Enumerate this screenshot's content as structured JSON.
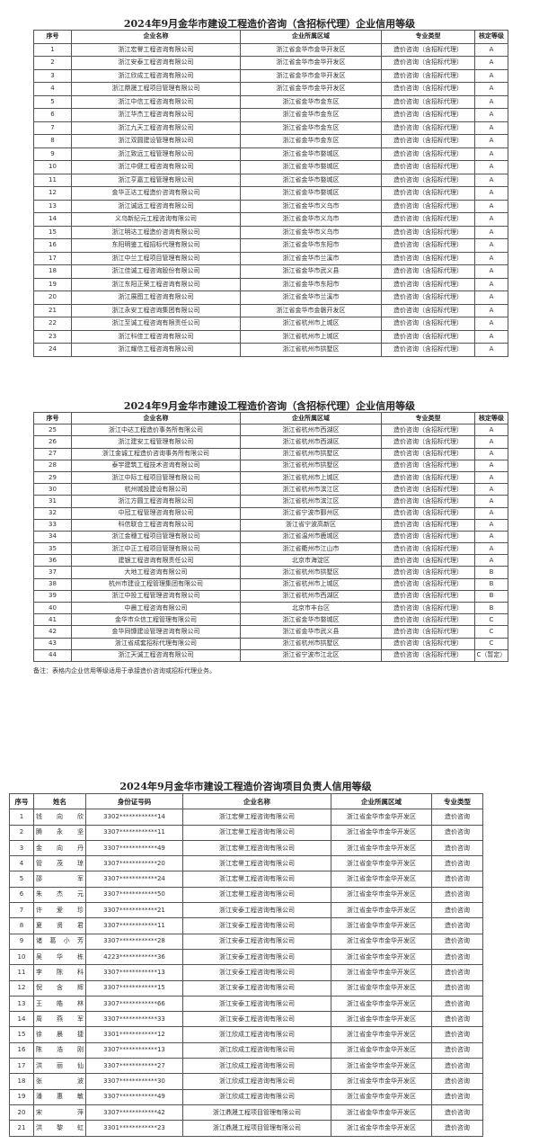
{
  "table1": {
    "title": "2024年9月金华市建设工程造价咨询（含招标代理）企业信用等级",
    "headers": [
      "序号",
      "企业名称",
      "企业所属区域",
      "专业类型",
      "核定等级"
    ],
    "rows": [
      [
        "1",
        "浙江宏譽工程咨询有限公司",
        "浙江省金华市金华开发区",
        "造价咨询（含招标代理）",
        "A"
      ],
      [
        "2",
        "浙江安泰工程咨询有限公司",
        "浙江省金华市金华开发区",
        "造价咨询（含招标代理）",
        "A"
      ],
      [
        "3",
        "浙江欣成工程咨询有限公司",
        "浙江省金华市金华开发区",
        "造价咨询（含招标代理）",
        "A"
      ],
      [
        "4",
        "浙江鼎晟工程项目管理有限公司",
        "浙江省金华市金华开发区",
        "造价咨询（含招标代理）",
        "A"
      ],
      [
        "5",
        "浙江中信工程咨询有限公司",
        "浙江省金华市金东区",
        "造价咨询（含招标代理）",
        "A"
      ],
      [
        "6",
        "浙江华杰工程咨询有限公司",
        "浙江省金华市金东区",
        "造价咨询（含招标代理）",
        "A"
      ],
      [
        "7",
        "浙江九天工程咨询有限公司",
        "浙江省金华市金东区",
        "造价咨询（含招标代理）",
        "A"
      ],
      [
        "8",
        "浙江双圆建设管理有限公司",
        "浙江省金华市金东区",
        "造价咨询（含招标代理）",
        "A"
      ],
      [
        "9",
        "浙江致远工程管理有限公司",
        "浙江省金华市婺城区",
        "造价咨询（含招标代理）",
        "A"
      ],
      [
        "10",
        "浙江中健工程咨询有限公司",
        "浙江省金华市婺城区",
        "造价咨询（含招标代理）",
        "A"
      ],
      [
        "11",
        "浙江亨嘉工程管理有限公司",
        "浙江省金华市婺城区",
        "造价咨询（含招标代理）",
        "A"
      ],
      [
        "12",
        "金华正达工程造价咨询有限公司",
        "浙江省金华市婺城区",
        "造价咨询（含招标代理）",
        "A"
      ],
      [
        "13",
        "浙江诚远工程咨询有限公司",
        "浙江省金华市义乌市",
        "造价咨询（含招标代理）",
        "A"
      ],
      [
        "14",
        "义乌新纪元工程咨询有限公司",
        "浙江省金华市义乌市",
        "造价咨询（含招标代理）",
        "A"
      ],
      [
        "15",
        "浙江明达工程造价咨询有限公司",
        "浙江省金华市义乌市",
        "造价咨询（含招标代理）",
        "A"
      ],
      [
        "16",
        "东阳明鉴工程招标代理有限公司",
        "浙江省金华市东阳市",
        "造价咨询（含招标代理）",
        "A"
      ],
      [
        "17",
        "浙江中兰工程项目管理有限公司",
        "浙江省金华市兰溪市",
        "造价咨询（含招标代理）",
        "A"
      ],
      [
        "18",
        "浙江佳诚工程咨询股份有限公司",
        "浙江省金华市武义县",
        "造价咨询（含招标代理）",
        "A"
      ],
      [
        "19",
        "浙江东阳正荣工程咨询有限公司",
        "浙江省金华市东阳市",
        "造价咨询（含招标代理）",
        "A"
      ],
      [
        "20",
        "浙江展图工程咨询有限公司",
        "浙江省金华市兰溪市",
        "造价咨询（含招标代理）",
        "A"
      ],
      [
        "21",
        "浙江永安工程咨询集团有限公司",
        "浙江省金华市金磐开发区",
        "造价咨询（含招标代理）",
        "A"
      ],
      [
        "22",
        "浙江至诚工程咨询有限责任公司",
        "浙江省杭州市上城区",
        "造价咨询（含招标代理）",
        "A"
      ],
      [
        "23",
        "浙江科佳工程咨询有限公司",
        "浙江省杭州市上城区",
        "造价咨询（含招标代理）",
        "A"
      ],
      [
        "24",
        "浙江耀信工程咨询有限公司",
        "浙江省杭州市拱墅区",
        "造价咨询（含招标代理）",
        "A"
      ]
    ]
  },
  "table2": {
    "title": "2024年9月金华市建设工程造价咨询（含招标代理）企业信用等级",
    "headers": [
      "序号",
      "企业名称",
      "企业所属区域",
      "专业类型",
      "核定等级"
    ],
    "rows": [
      [
        "25",
        "浙江中达工程造价事务所有限公司",
        "浙江省杭州市西湖区",
        "造价咨询（含招标代理）",
        "A"
      ],
      [
        "26",
        "浙江建安工程管理有限公司",
        "浙江省杭州市西湖区",
        "造价咨询（含招标代理）",
        "A"
      ],
      [
        "27",
        "浙江金诚工程造价咨询事务所有限公司",
        "浙江省杭州市拱墅区",
        "造价咨询（含招标代理）",
        "A"
      ],
      [
        "28",
        "泰宇建筑工程技术咨询有限公司",
        "浙江省杭州市拱墅区",
        "造价咨询（含招标代理）",
        "A"
      ],
      [
        "29",
        "浙江中际工程项目管理有限公司",
        "浙江省杭州市上城区",
        "造价咨询（含招标代理）",
        "A"
      ],
      [
        "30",
        "杭州城投建设有限公司",
        "浙江省杭州市滨江区",
        "造价咨询（含招标代理）",
        "A"
      ],
      [
        "31",
        "浙江方圆工程咨询有限公司",
        "浙江省杭州市滨江区",
        "造价咨询（含招标代理）",
        "A"
      ],
      [
        "32",
        "中冠工程管理咨询有限公司",
        "浙江省宁波市鄞州区",
        "造价咨询（含招标代理）",
        "A"
      ],
      [
        "33",
        "科信联合工程咨询有限公司",
        "浙江省宁波高新区",
        "造价咨询（含招标代理）",
        "A"
      ],
      [
        "34",
        "浙江金穗工程项目管理有限公司",
        "浙江省温州市鹿城区",
        "造价咨询（含招标代理）",
        "A"
      ],
      [
        "35",
        "浙江中正工程项目管理有限公司",
        "浙江省衢州市江山市",
        "造价咨询（含招标代理）",
        "A"
      ],
      [
        "36",
        "建银工程咨询有限责任公司",
        "北京市海淀区",
        "造价咨询（含招标代理）",
        "A"
      ],
      [
        "37",
        "大地工程咨询有限公司",
        "浙江省杭州市拱墅区",
        "造价咨询（含招标代理）",
        "B"
      ],
      [
        "38",
        "杭州市建设工程管理集团有限公司",
        "浙江省杭州市上城区",
        "造价咨询（含招标代理）",
        "B"
      ],
      [
        "39",
        "浙江中投工程管理咨询有限公司",
        "浙江省杭州市西湖区",
        "造价咨询（含招标代理）",
        "B"
      ],
      [
        "40",
        "中晨工程咨询有限公司",
        "北京市丰台区",
        "造价咨询（含招标代理）",
        "B"
      ],
      [
        "41",
        "金华市众信工程管理有限公司",
        "浙江省金华市婺城区",
        "造价咨询（含招标代理）",
        "C"
      ],
      [
        "42",
        "金华同慷建设管理咨询有限公司",
        "浙江省金华市武义县",
        "造价咨询（含招标代理）",
        "C"
      ],
      [
        "43",
        "浙江省成套招标代理有限公司",
        "浙江省杭州市拱墅区",
        "造价咨询（含招标代理）",
        "C"
      ],
      [
        "44",
        "浙江天诚工程咨询有限公司",
        "浙江省宁波市江北区",
        "造价咨询（含招标代理）",
        "C（暂定）"
      ]
    ],
    "note": "备注：表格内企业信用等级适用于承接造价咨询或招标代理业务。"
  },
  "table3": {
    "title": "2024年9月金华市建设工程造价咨询项目负责人信用等级",
    "headers": [
      "序号",
      "姓名",
      "身份证号码",
      "企业名称",
      "企业所属区域",
      "专业类型"
    ],
    "rows": [
      [
        "1",
        "钱向欣",
        "3302************14",
        "浙江宏譽工程咨询有限公司",
        "浙江省金华市金华开发区",
        "造价咨询"
      ],
      [
        "2",
        "腾永坚",
        "3307************11",
        "浙江宏譽工程咨询有限公司",
        "浙江省金华市金华开发区",
        "造价咨询"
      ],
      [
        "3",
        "金向丹",
        "3307************49",
        "浙江宏譽工程咨询有限公司",
        "浙江省金华市金华开发区",
        "造价咨询"
      ],
      [
        "4",
        "管茂琼",
        "3307************20",
        "浙江宏譽工程咨询有限公司",
        "浙江省金华市金华开发区",
        "造价咨询"
      ],
      [
        "5",
        "邵军",
        "3307************24",
        "浙江宏譽工程咨询有限公司",
        "浙江省金华市金华开发区",
        "造价咨询"
      ],
      [
        "6",
        "朱杰元",
        "3307************50",
        "浙江宏譽工程咨询有限公司",
        "浙江省金华市金华开发区",
        "造价咨询"
      ],
      [
        "7",
        "许爱珍",
        "3307************21",
        "浙江安泰工程咨询有限公司",
        "浙江省金华市金华开发区",
        "造价咨询"
      ],
      [
        "8",
        "夏贤君",
        "3307************11",
        "浙江安泰工程咨询有限公司",
        "浙江省金华市金华开发区",
        "造价咨询"
      ],
      [
        "9",
        "诸葛小芳",
        "3307************28",
        "浙江安泰工程咨询有限公司",
        "浙江省金华市金华开发区",
        "造价咨询"
      ],
      [
        "10",
        "吴华栋",
        "4223************36",
        "浙江安泰工程咨询有限公司",
        "浙江省金华市金华开发区",
        "造价咨询"
      ],
      [
        "11",
        "李陈科",
        "3307************13",
        "浙江安泰工程咨询有限公司",
        "浙江省金华市金华开发区",
        "造价咨询"
      ],
      [
        "12",
        "倪含辉",
        "3307************15",
        "浙江安泰工程咨询有限公司",
        "浙江省金华市金华开发区",
        "造价咨询"
      ],
      [
        "13",
        "王皓林",
        "3307************66",
        "浙江安泰工程咨询有限公司",
        "浙江省金华市金华开发区",
        "造价咨询"
      ],
      [
        "14",
        "周燕军",
        "3307************33",
        "浙江安泰工程咨询有限公司",
        "浙江省金华市金华开发区",
        "造价咨询"
      ],
      [
        "15",
        "徐晨捷",
        "3301************12",
        "浙江欣成工程咨询有限公司",
        "浙江省金华市金华开发区",
        "造价咨询"
      ],
      [
        "16",
        "陈浩刚",
        "3307************13",
        "浙江欣成工程咨询有限公司",
        "浙江省金华市金华开发区",
        "造价咨询"
      ],
      [
        "17",
        "洪丽仙",
        "3307************27",
        "浙江欣成工程咨询有限公司",
        "浙江省金华市金华开发区",
        "造价咨询"
      ],
      [
        "18",
        "张波",
        "3307************30",
        "浙江欣成工程咨询有限公司",
        "浙江省金华市金华开发区",
        "造价咨询"
      ],
      [
        "19",
        "潘惠敏",
        "3307************49",
        "浙江欣成工程咨询有限公司",
        "浙江省金华市金华开发区",
        "造价咨询"
      ],
      [
        "20",
        "宋萍",
        "3307************42",
        "浙江鼎晟工程项目管理有限公司",
        "浙江省金华市金华开发区",
        "造价咨询"
      ],
      [
        "21",
        "洪黎虹",
        "3301************23",
        "浙江鼎晟工程项目管理有限公司",
        "浙江省金华市金华开发区",
        "造价咨询"
      ]
    ]
  }
}
